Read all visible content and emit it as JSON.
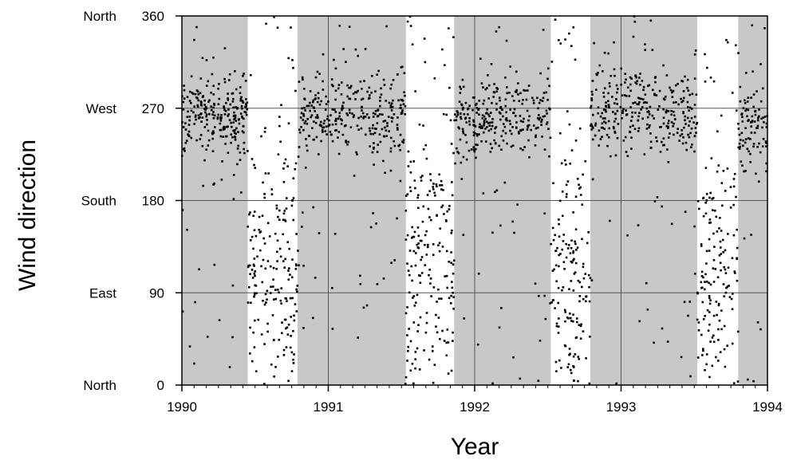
{
  "chart_data": {
    "type": "scatter",
    "xlabel": "Year",
    "ylabel": "Wind direction",
    "xlim": [
      1990,
      1994
    ],
    "ylim": [
      0,
      360
    ],
    "x_ticks": [
      "1990",
      "1991",
      "1992",
      "1993",
      "1994"
    ],
    "y_ticks": [
      "0",
      "90",
      "180",
      "270",
      "360"
    ],
    "direction_labels": [
      "North",
      "East",
      "South",
      "West",
      "North"
    ],
    "grid": true,
    "colors": {
      "shaded": "#c8c8c8",
      "points": "#000000",
      "grid": "#555555"
    },
    "shaded_periods": [
      [
        1990.0,
        1990.45
      ],
      [
        1990.79,
        1991.53
      ],
      [
        1991.86,
        1992.52
      ],
      [
        1992.79,
        1993.52
      ],
      [
        1993.8,
        1994.0
      ]
    ],
    "clusters": [
      {
        "x": [
          1990.0,
          1990.45
        ],
        "center": 265,
        "spread": 18,
        "n": 260
      },
      {
        "x": [
          1990.45,
          1990.8
        ],
        "center": 110,
        "spread": 60,
        "n": 200
      },
      {
        "x": [
          1990.8,
          1991.53
        ],
        "center": 265,
        "spread": 20,
        "n": 330
      },
      {
        "x": [
          1991.53,
          1991.86
        ],
        "center": 120,
        "spread": 65,
        "n": 200
      },
      {
        "x": [
          1991.86,
          1992.52
        ],
        "center": 262,
        "spread": 18,
        "n": 300
      },
      {
        "x": [
          1992.52,
          1992.79
        ],
        "center": 90,
        "spread": 65,
        "n": 160
      },
      {
        "x": [
          1992.79,
          1993.52
        ],
        "center": 268,
        "spread": 20,
        "n": 330
      },
      {
        "x": [
          1993.52,
          1993.8
        ],
        "center": 110,
        "spread": 60,
        "n": 160
      },
      {
        "x": [
          1993.8,
          1994.0
        ],
        "center": 250,
        "spread": 25,
        "n": 100
      }
    ]
  }
}
